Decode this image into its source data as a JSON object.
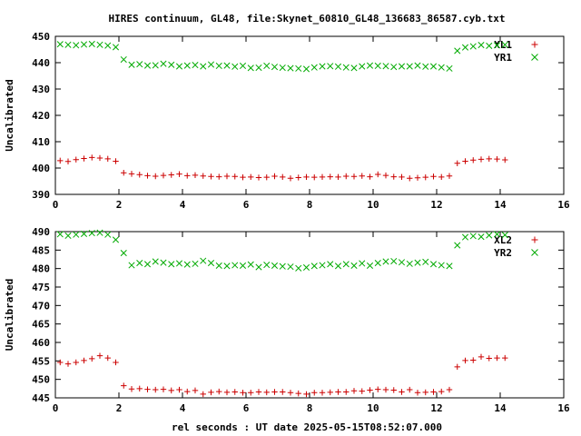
{
  "chart_data": {
    "type": "scatter",
    "title": "HIRES continuum, GL48, file:Skynet_60810_GL48_136683_86587.cyb.txt",
    "xlabel": "rel seconds : UT date 2025-05-15T08:52:07.000",
    "colors": {
      "XL": "#cc0000",
      "YR": "#00aa00"
    },
    "panels": [
      {
        "ylabel": "Uncalibrated",
        "xlim": [
          0,
          16
        ],
        "ylim": [
          390,
          450
        ],
        "xticks": [
          0,
          2,
          4,
          6,
          8,
          10,
          12,
          14,
          16
        ],
        "yticks": [
          390,
          400,
          410,
          420,
          430,
          440,
          450
        ],
        "legend_position": "top-right",
        "series": [
          {
            "name": "XL1",
            "marker": "plus",
            "color": "#cc0000",
            "x": [
              0.15,
              0.4,
              0.65,
              0.9,
              1.15,
              1.4,
              1.65,
              1.9,
              2.15,
              2.4,
              2.65,
              2.9,
              3.15,
              3.4,
              3.65,
              3.9,
              4.15,
              4.4,
              4.65,
              4.9,
              5.15,
              5.4,
              5.65,
              5.9,
              6.15,
              6.4,
              6.65,
              6.9,
              7.15,
              7.4,
              7.65,
              7.9,
              8.15,
              8.4,
              8.65,
              8.9,
              9.15,
              9.4,
              9.65,
              9.9,
              10.15,
              10.4,
              10.65,
              10.9,
              11.15,
              11.4,
              11.65,
              11.9,
              12.15,
              12.4,
              12.65,
              12.9,
              13.15,
              13.4,
              13.65,
              13.9,
              14.15
            ],
            "y": [
              402.8,
              402.5,
              403.2,
              403.6,
              404.0,
              403.8,
              403.5,
              402.6,
              398.2,
              397.8,
              397.5,
              397.1,
              396.9,
              397.2,
              397.4,
              397.7,
              397.1,
              397.3,
              397.0,
              396.8,
              396.7,
              396.9,
              396.8,
              396.5,
              396.6,
              396.4,
              396.5,
              396.9,
              396.6,
              396.1,
              396.4,
              396.6,
              396.5,
              396.6,
              396.7,
              396.6,
              396.9,
              396.8,
              397.0,
              396.7,
              397.6,
              397.2,
              396.7,
              396.6,
              396.1,
              396.3,
              396.5,
              396.8,
              396.6,
              397.0,
              401.8,
              402.6,
              403.0,
              403.3,
              403.5,
              403.4,
              403.1
            ]
          },
          {
            "name": "YR1",
            "marker": "cross",
            "color": "#00aa00",
            "x": [
              0.15,
              0.4,
              0.65,
              0.9,
              1.15,
              1.4,
              1.65,
              1.9,
              2.15,
              2.4,
              2.65,
              2.9,
              3.15,
              3.4,
              3.65,
              3.9,
              4.15,
              4.4,
              4.65,
              4.9,
              5.15,
              5.4,
              5.65,
              5.9,
              6.15,
              6.4,
              6.65,
              6.9,
              7.15,
              7.4,
              7.65,
              7.9,
              8.15,
              8.4,
              8.65,
              8.9,
              9.15,
              9.4,
              9.65,
              9.9,
              10.15,
              10.4,
              10.65,
              10.9,
              11.15,
              11.4,
              11.65,
              11.9,
              12.15,
              12.4,
              12.65,
              12.9,
              13.15,
              13.4,
              13.65,
              13.9,
              14.15
            ],
            "y": [
              447.0,
              446.8,
              446.6,
              446.9,
              447.1,
              446.8,
              446.5,
              445.9,
              441.2,
              439.2,
              439.4,
              438.9,
              439.0,
              439.6,
              439.2,
              438.6,
              438.9,
              439.1,
              438.6,
              439.3,
              438.8,
              438.9,
              438.5,
              438.8,
              438.0,
              438.1,
              438.8,
              438.4,
              438.1,
              437.9,
              437.8,
              437.6,
              438.2,
              438.6,
              438.7,
              438.5,
              438.2,
              438.0,
              438.6,
              438.9,
              438.8,
              438.7,
              438.4,
              438.6,
              438.6,
              438.9,
              438.5,
              438.6,
              438.2,
              437.8,
              444.5,
              445.8,
              446.2,
              446.7,
              446.4,
              446.6,
              446.8
            ]
          }
        ]
      },
      {
        "ylabel": "Uncalibrated",
        "xlim": [
          0,
          16
        ],
        "ylim": [
          445,
          490
        ],
        "xticks": [
          0,
          2,
          4,
          6,
          8,
          10,
          12,
          14,
          16
        ],
        "yticks": [
          445,
          450,
          455,
          460,
          465,
          470,
          475,
          480,
          485,
          490
        ],
        "legend_position": "top-right",
        "series": [
          {
            "name": "XL2",
            "marker": "plus",
            "color": "#cc0000",
            "x": [
              0.15,
              0.4,
              0.65,
              0.9,
              1.15,
              1.4,
              1.65,
              1.9,
              2.15,
              2.4,
              2.65,
              2.9,
              3.15,
              3.4,
              3.65,
              3.9,
              4.15,
              4.4,
              4.65,
              4.9,
              5.15,
              5.4,
              5.65,
              5.9,
              6.15,
              6.4,
              6.65,
              6.9,
              7.15,
              7.4,
              7.65,
              7.9,
              8.15,
              8.4,
              8.65,
              8.9,
              9.15,
              9.4,
              9.65,
              9.9,
              10.15,
              10.4,
              10.65,
              10.9,
              11.15,
              11.4,
              11.65,
              11.9,
              12.15,
              12.4,
              12.65,
              12.9,
              13.15,
              13.4,
              13.65,
              13.9,
              14.15
            ],
            "y": [
              454.6,
              454.2,
              454.6,
              455.1,
              455.6,
              456.4,
              455.8,
              454.6,
              448.3,
              447.4,
              447.5,
              447.3,
              447.2,
              447.3,
              447.0,
              447.2,
              446.7,
              447.0,
              446.0,
              446.5,
              446.7,
              446.5,
              446.6,
              446.4,
              446.4,
              446.6,
              446.5,
              446.6,
              446.6,
              446.4,
              446.2,
              446.0,
              446.4,
              446.4,
              446.5,
              446.6,
              446.6,
              446.9,
              446.8,
              447.1,
              447.3,
              447.2,
              447.1,
              446.6,
              447.2,
              446.4,
              446.5,
              446.6,
              446.7,
              447.2,
              453.4,
              455.1,
              455.2,
              456.1,
              455.7,
              455.8,
              455.8
            ]
          },
          {
            "name": "YR2",
            "marker": "cross",
            "color": "#00aa00",
            "x": [
              0.15,
              0.4,
              0.65,
              0.9,
              1.15,
              1.4,
              1.65,
              1.9,
              2.15,
              2.4,
              2.65,
              2.9,
              3.15,
              3.4,
              3.65,
              3.9,
              4.15,
              4.4,
              4.65,
              4.9,
              5.15,
              5.4,
              5.65,
              5.9,
              6.15,
              6.4,
              6.65,
              6.9,
              7.15,
              7.4,
              7.65,
              7.9,
              8.15,
              8.4,
              8.65,
              8.9,
              9.15,
              9.4,
              9.65,
              9.9,
              10.15,
              10.4,
              10.65,
              10.9,
              11.15,
              11.4,
              11.65,
              11.9,
              12.15,
              12.4,
              12.65,
              12.9,
              13.15,
              13.4,
              13.65,
              13.9,
              14.15
            ],
            "y": [
              489.3,
              488.9,
              489.2,
              489.4,
              489.6,
              489.7,
              489.2,
              487.8,
              484.2,
              480.9,
              481.5,
              481.2,
              481.9,
              481.6,
              481.2,
              481.4,
              481.1,
              481.3,
              482.1,
              481.5,
              480.8,
              480.7,
              480.9,
              480.8,
              481.1,
              480.4,
              481.0,
              480.8,
              480.6,
              480.5,
              480.1,
              480.3,
              480.7,
              480.9,
              481.2,
              480.7,
              481.2,
              480.8,
              481.4,
              480.8,
              481.5,
              481.9,
              482.0,
              481.7,
              481.3,
              481.6,
              481.8,
              481.2,
              480.9,
              480.7,
              486.3,
              488.5,
              488.8,
              488.6,
              489.0,
              489.3,
              489.1
            ]
          }
        ]
      }
    ]
  }
}
